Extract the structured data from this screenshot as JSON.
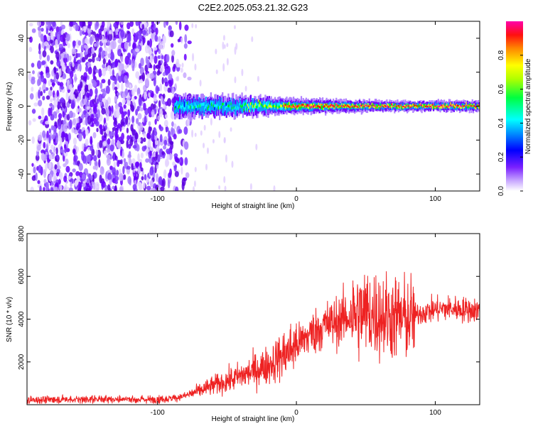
{
  "title": "C2E2.2025.053.21.32.G23",
  "chart_data": [
    {
      "type": "heatmap",
      "xlabel": "Height of straight line (km)",
      "ylabel": "Frequency (Hz)",
      "xlim": [
        -194,
        132
      ],
      "ylim": [
        -50,
        50
      ],
      "xticks": [
        -100,
        0,
        100
      ],
      "yticks": [
        -40,
        -20,
        0,
        20,
        40
      ],
      "xtick_labels": [
        "-100",
        "0",
        "100"
      ],
      "ytick_labels": [
        "-40",
        "-20",
        "0",
        "20",
        "40"
      ],
      "colorbar": {
        "label": "Normalized spectral amplitude",
        "range": [
          0,
          1
        ],
        "ticks": [
          0,
          0.2,
          0.4,
          0.6,
          0.8
        ],
        "tick_labels": [
          "0.0",
          "0.2",
          "0.4",
          "0.6",
          "0.8"
        ],
        "colormap": [
          "#ffffff",
          "#b080ff",
          "#6a00ff",
          "#0000ff",
          "#00aaff",
          "#00ffff",
          "#00ff00",
          "#ffff00",
          "#ff8800",
          "#ff0000",
          "#ff00aa"
        ]
      },
      "features": {
        "noise_region_x": [
          -194,
          -88
        ],
        "signal_onset_x": -88,
        "signal_center_frequency": 0
      }
    },
    {
      "type": "line",
      "xlabel": "Height of straight line (km)",
      "ylabel": "SNR (10 * v/v)",
      "xlim": [
        -194,
        132
      ],
      "ylim": [
        0,
        8000
      ],
      "xticks": [
        -100,
        0,
        100
      ],
      "yticks": [
        2000,
        4000,
        6000,
        8000
      ],
      "xtick_labels": [
        "-100",
        "0",
        "100"
      ],
      "ytick_labels": [
        "2000",
        "4000",
        "6000",
        "8000"
      ],
      "series": [
        {
          "color": "#ee2222",
          "x": [
            -194,
            -180,
            -160,
            -140,
            -120,
            -100,
            -90,
            -80,
            -70,
            -60,
            -50,
            -40,
            -30,
            -20,
            -10,
            0,
            10,
            20,
            30,
            40,
            50,
            60,
            70,
            80,
            90,
            100,
            110,
            120,
            132
          ],
          "y": [
            200,
            230,
            250,
            260,
            250,
            250,
            280,
            420,
            650,
            900,
            1100,
            1350,
            1600,
            1850,
            2300,
            2800,
            3300,
            3700,
            3900,
            4200,
            4300,
            4200,
            4100,
            4000,
            4300,
            4450,
            4500,
            4450,
            4400
          ]
        }
      ]
    }
  ]
}
